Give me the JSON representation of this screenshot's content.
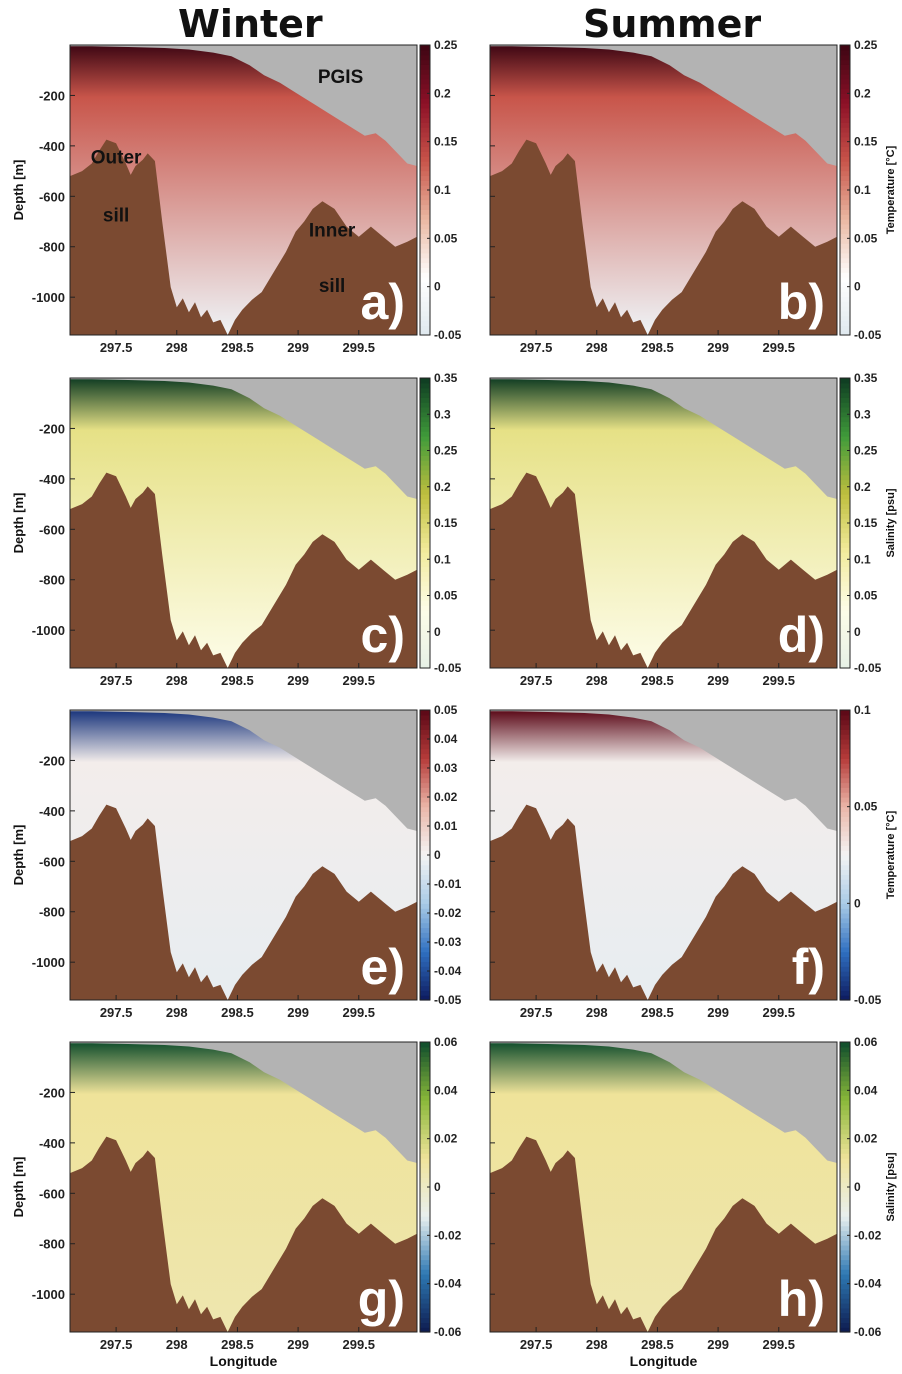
{
  "figure": {
    "column_titles": [
      "Winter",
      "Summer"
    ],
    "colors": {
      "bathymetry": "#7b4a31",
      "ice_shelf": "#b3b3b3",
      "temperature_cmap": [
        "#dfe8ee",
        "#ffffff",
        "#eab8a2",
        "#c8554a",
        "#8c1027",
        "#3d0613"
      ],
      "salinity_cmap": [
        "#e6f1e6",
        "#fdfce8",
        "#f3ec9e",
        "#bfbf3e",
        "#3f9a3a",
        "#0e3b22"
      ],
      "temperature_anomaly_cmap": [
        "#0d1a5e",
        "#2f6fc0",
        "#a9cbe6",
        "#f4f4f4",
        "#ebb6a9",
        "#b63c3a",
        "#5a0716"
      ],
      "salinity_anomaly_cmap": [
        "#0d1a4e",
        "#2d78b2",
        "#e9f0ef",
        "#efe39a",
        "#8ab83a",
        "#0f4d2c"
      ]
    }
  },
  "chart_data": [
    {
      "panel": "a)",
      "type": "heatmap",
      "column": "Winter",
      "variable": "Temperature [°C]",
      "ylabel": "Depth [m]",
      "xlabel": "",
      "xticks": [
        297.5,
        298,
        298.5,
        299,
        299.5
      ],
      "yticks": [
        -200,
        -400,
        -600,
        -800,
        -1000
      ],
      "clim": [
        -0.05,
        0.25
      ],
      "cticks": [
        -0.05,
        0,
        0.05,
        0.1,
        0.15,
        0.2,
        0.25
      ],
      "colorbar_label": "",
      "annotations": [
        "PGIS",
        "Outer sill",
        "Inner sill"
      ]
    },
    {
      "panel": "b)",
      "type": "heatmap",
      "column": "Summer",
      "variable": "Temperature [°C]",
      "ylabel": "",
      "xlabel": "",
      "xticks": [
        297.5,
        298,
        298.5,
        299,
        299.5
      ],
      "yticks": [],
      "clim": [
        -0.05,
        0.25
      ],
      "cticks": [
        -0.05,
        0,
        0.05,
        0.1,
        0.15,
        0.2,
        0.25
      ],
      "colorbar_label": "Temperature [°C]",
      "annotations": []
    },
    {
      "panel": "c)",
      "type": "heatmap",
      "column": "Winter",
      "variable": "Salinity [psu]",
      "ylabel": "Depth [m]",
      "xlabel": "",
      "xticks": [
        297.5,
        298,
        298.5,
        299,
        299.5
      ],
      "yticks": [
        -200,
        -400,
        -600,
        -800,
        -1000
      ],
      "clim": [
        -0.05,
        0.35
      ],
      "cticks": [
        -0.05,
        0,
        0.05,
        0.1,
        0.15,
        0.2,
        0.25,
        0.3,
        0.35
      ],
      "colorbar_label": "",
      "annotations": []
    },
    {
      "panel": "d)",
      "type": "heatmap",
      "column": "Summer",
      "variable": "Salinity [psu]",
      "ylabel": "",
      "xlabel": "",
      "xticks": [
        297.5,
        298,
        298.5,
        299,
        299.5
      ],
      "yticks": [],
      "clim": [
        -0.05,
        0.35
      ],
      "cticks": [
        -0.05,
        0,
        0.05,
        0.1,
        0.15,
        0.2,
        0.25,
        0.3,
        0.35
      ],
      "colorbar_label": "Salinity [psu]",
      "annotations": []
    },
    {
      "panel": "e)",
      "type": "heatmap",
      "column": "Winter",
      "variable": "Temperature [°C]",
      "ylabel": "Depth [m]",
      "xlabel": "",
      "xticks": [
        297.5,
        298,
        298.5,
        299,
        299.5
      ],
      "yticks": [
        -200,
        -400,
        -600,
        -800,
        -1000
      ],
      "clim": [
        -0.05,
        0.05
      ],
      "cticks": [
        -0.05,
        -0.04,
        -0.03,
        -0.02,
        -0.01,
        0,
        0.01,
        0.02,
        0.03,
        0.04,
        0.05
      ],
      "colorbar_label": "",
      "annotations": []
    },
    {
      "panel": "f)",
      "type": "heatmap",
      "column": "Summer",
      "variable": "Temperature [°C]",
      "ylabel": "",
      "xlabel": "",
      "xticks": [
        297.5,
        298,
        298.5,
        299,
        299.5
      ],
      "yticks": [],
      "clim": [
        -0.05,
        0.1
      ],
      "cticks": [
        -0.05,
        0,
        0.05,
        0.1
      ],
      "colorbar_label": "Temperature [°C]",
      "annotations": []
    },
    {
      "panel": "g)",
      "type": "heatmap",
      "column": "Winter",
      "variable": "Salinity [psu]",
      "ylabel": "Depth [m]",
      "xlabel": "Longitude",
      "xticks": [
        297.5,
        298,
        298.5,
        299,
        299.5
      ],
      "yticks": [
        -200,
        -400,
        -600,
        -800,
        -1000
      ],
      "clim": [
        -0.06,
        0.06
      ],
      "cticks": [
        -0.06,
        -0.04,
        -0.02,
        0,
        0.02,
        0.04,
        0.06
      ],
      "colorbar_label": "",
      "annotations": []
    },
    {
      "panel": "h)",
      "type": "heatmap",
      "column": "Summer",
      "variable": "Salinity [psu]",
      "ylabel": "",
      "xlabel": "Longitude",
      "xticks": [
        297.5,
        298,
        298.5,
        299,
        299.5
      ],
      "yticks": [],
      "clim": [
        -0.06,
        0.06
      ],
      "cticks": [
        -0.06,
        -0.04,
        -0.02,
        0,
        0.02,
        0.04,
        0.06
      ],
      "colorbar_label": "Salinity [psu]",
      "annotations": []
    }
  ]
}
